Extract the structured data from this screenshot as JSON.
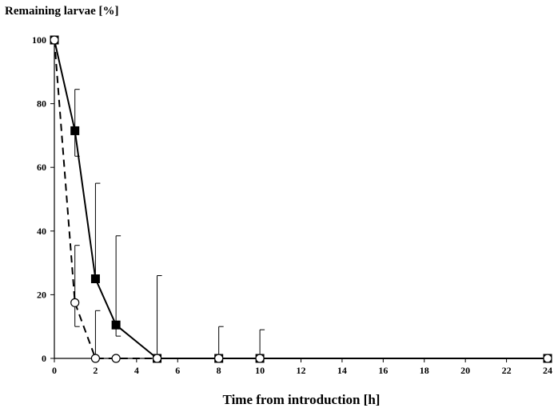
{
  "chart_data": {
    "type": "line",
    "title": "",
    "ylabel": "Remaining larvae [%]",
    "xlabel": "Time from introduction [h]",
    "xlim": [
      0,
      24
    ],
    "ylim": [
      0,
      100
    ],
    "x_ticks": [
      0,
      2,
      4,
      6,
      8,
      10,
      12,
      14,
      16,
      18,
      20,
      22,
      24
    ],
    "y_ticks": [
      0,
      20,
      40,
      60,
      80,
      100
    ],
    "grid": false,
    "legend": "none",
    "series": [
      {
        "line_style": "solid",
        "marker": "filled-square",
        "color": "#000000",
        "x": [
          0,
          1,
          2,
          3,
          5,
          8,
          10,
          24
        ],
        "y": [
          100,
          71.5,
          25,
          10.5,
          0,
          0,
          0,
          0
        ],
        "error_upper": [
          0,
          13,
          30,
          28,
          26,
          10,
          9,
          0
        ],
        "error_lower": [
          0,
          8,
          0,
          3.5,
          0,
          0,
          0,
          0
        ]
      },
      {
        "line_style": "dashed",
        "marker": "open-circle",
        "color": "#000000",
        "x": [
          0,
          1,
          2,
          3,
          5,
          8,
          10,
          24
        ],
        "y": [
          100,
          17.5,
          0,
          0,
          0,
          0,
          0,
          0
        ],
        "error_upper": [
          0,
          18,
          15,
          0,
          0,
          0,
          0,
          0
        ],
        "error_lower": [
          0,
          7.5,
          0,
          0,
          0,
          0,
          0,
          0
        ]
      }
    ]
  }
}
